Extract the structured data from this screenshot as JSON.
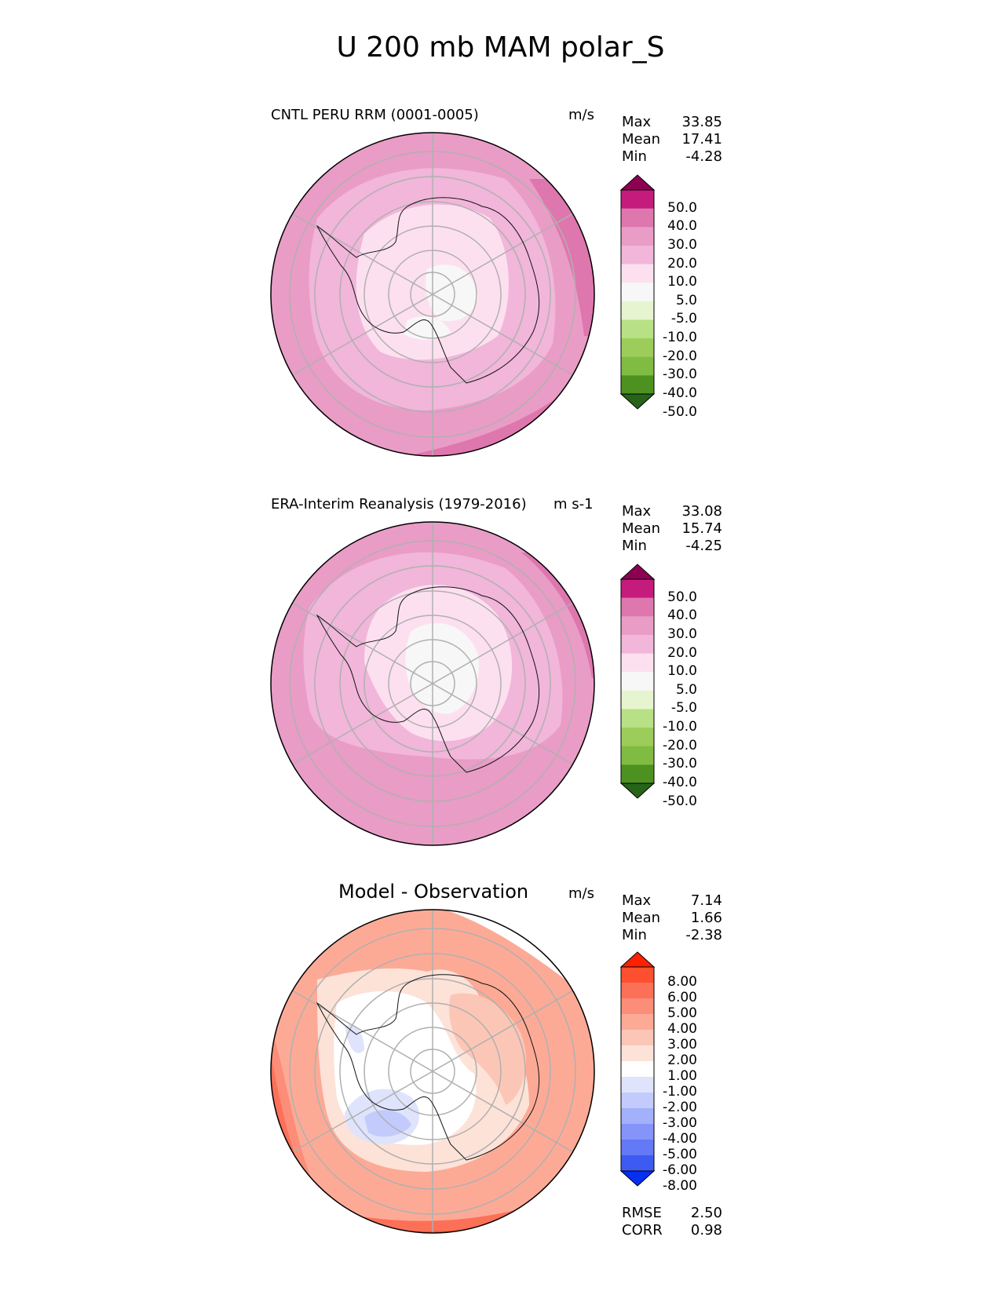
{
  "title": "U 200 mb MAM polar_S",
  "panels": [
    {
      "id": "test",
      "title": "CNTL PERU RRM (0001-0005)",
      "units": "m/s",
      "stats": [
        {
          "label": "Max",
          "value": "33.85"
        },
        {
          "label": "Mean",
          "value": "17.41"
        },
        {
          "label": "Min",
          "value": "-4.28"
        }
      ],
      "colorbar": {
        "ticks": [
          "50.0",
          "40.0",
          "30.0",
          "20.0",
          "10.0",
          "5.0",
          "-5.0",
          "-10.0",
          "-20.0",
          "-30.0",
          "-40.0",
          "-50.0"
        ],
        "colors": [
          "#8e0152",
          "#c51b7d",
          "#de77ae",
          "#e99cc6",
          "#f1b6da",
          "#fde0ef",
          "#f7f7f7",
          "#e6f5d0",
          "#b8e186",
          "#9ccd5b",
          "#7fbc41",
          "#4d9221",
          "#276419"
        ]
      }
    },
    {
      "id": "reference",
      "title": "ERA-Interim Reanalysis (1979-2016)",
      "units": "m s-1",
      "stats": [
        {
          "label": "Max",
          "value": "33.08"
        },
        {
          "label": "Mean",
          "value": "15.74"
        },
        {
          "label": "Min",
          "value": "-4.25"
        }
      ],
      "colorbar": {
        "ticks": [
          "50.0",
          "40.0",
          "30.0",
          "20.0",
          "10.0",
          "5.0",
          "-5.0",
          "-10.0",
          "-20.0",
          "-30.0",
          "-40.0",
          "-50.0"
        ],
        "colors": [
          "#8e0152",
          "#c51b7d",
          "#de77ae",
          "#e99cc6",
          "#f1b6da",
          "#fde0ef",
          "#f7f7f7",
          "#e6f5d0",
          "#b8e186",
          "#9ccd5b",
          "#7fbc41",
          "#4d9221",
          "#276419"
        ]
      }
    },
    {
      "id": "diff",
      "title": "Model - Observation",
      "units": "m/s",
      "stats": [
        {
          "label": "Max",
          "value": "7.14"
        },
        {
          "label": "Mean",
          "value": "1.66"
        },
        {
          "label": "Min",
          "value": "-2.38"
        }
      ],
      "colorbar": {
        "ticks": [
          "8.00",
          "6.00",
          "5.00",
          "4.00",
          "3.00",
          "2.00",
          "1.00",
          "-1.00",
          "-2.00",
          "-3.00",
          "-4.00",
          "-5.00",
          "-6.00",
          "-8.00"
        ],
        "colors": [
          "#ff2000",
          "#fc5030",
          "#fd7058",
          "#fc8d78",
          "#fcaa96",
          "#fcc6b6",
          "#fde2d8",
          "#ffffff",
          "#dfe4fc",
          "#c2cbfb",
          "#a3b0fa",
          "#8494f8",
          "#6479f6",
          "#3d5bf3",
          "#0530f0"
        ]
      },
      "extra_stats": [
        {
          "label": "RMSE",
          "value": "2.50"
        },
        {
          "label": "CORR",
          "value": "0.98"
        }
      ]
    }
  ],
  "chart_data": [
    {
      "type": "heatmap",
      "projection": "south polar stereographic",
      "title": "CNTL PERU RRM (0001-0005)",
      "variable": "U 200 mb MAM",
      "units": "m/s",
      "levels": [
        -50,
        -40,
        -30,
        -20,
        -10,
        -5,
        5,
        10,
        20,
        30,
        40,
        50
      ],
      "stats": {
        "max": 33.85,
        "mean": 17.41,
        "min": -4.28
      }
    },
    {
      "type": "heatmap",
      "projection": "south polar stereographic",
      "title": "ERA-Interim Reanalysis (1979-2016)",
      "variable": "U 200 mb MAM",
      "units": "m s-1",
      "levels": [
        -50,
        -40,
        -30,
        -20,
        -10,
        -5,
        5,
        10,
        20,
        30,
        40,
        50
      ],
      "stats": {
        "max": 33.08,
        "mean": 15.74,
        "min": -4.25
      }
    },
    {
      "type": "heatmap",
      "projection": "south polar stereographic",
      "title": "Model - Observation",
      "units": "m/s",
      "levels": [
        -8,
        -6,
        -5,
        -4,
        -3,
        -2,
        -1,
        1,
        2,
        3,
        4,
        5,
        6,
        8
      ],
      "stats": {
        "max": 7.14,
        "mean": 1.66,
        "min": -2.38,
        "rmse": 2.5,
        "corr": 0.98
      }
    }
  ]
}
